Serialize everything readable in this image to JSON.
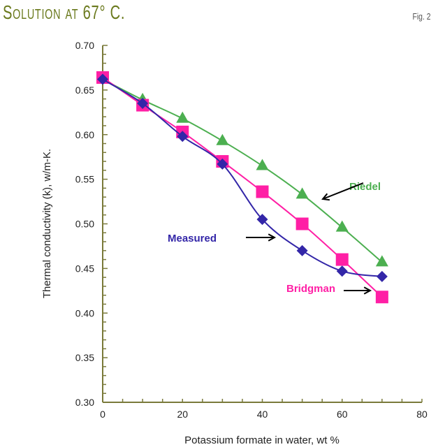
{
  "header": {
    "title": "Solution at 67° C.",
    "fig_label": "Fig. 2"
  },
  "chart_data": {
    "type": "line",
    "title": "Solution at 67° C.",
    "xlabel": "Potassium formate in water, wt %",
    "ylabel": "Thermal conductivity (k), w/m-K.",
    "xlim": [
      0,
      80
    ],
    "ylim": [
      0.3,
      0.7
    ],
    "xticks": [
      "0",
      "20",
      "40",
      "60",
      "80"
    ],
    "yticks": [
      "0.30",
      "0.35",
      "0.40",
      "0.45",
      "0.50",
      "0.55",
      "0.60",
      "0.65",
      "0.70"
    ],
    "grid": false,
    "x": [
      0,
      10,
      20,
      30,
      40,
      50,
      60,
      70
    ],
    "series": [
      {
        "name": "Riedel",
        "marker": "triangle",
        "color": "#4caf50",
        "values": [
          0.662,
          0.639,
          0.618,
          0.593,
          0.565,
          0.533,
          0.496,
          0.457
        ]
      },
      {
        "name": "Bridgman",
        "marker": "square",
        "color": "#ff1fa5",
        "values": [
          0.664,
          0.633,
          0.603,
          0.57,
          0.536,
          0.5,
          0.46,
          0.418
        ]
      },
      {
        "name": "Measured",
        "marker": "diamond",
        "color": "#3326a8",
        "values": [
          0.662,
          0.635,
          0.598,
          0.567,
          0.505,
          0.47,
          0.447,
          0.441
        ]
      }
    ],
    "axis_color": "#7a7a3a"
  }
}
